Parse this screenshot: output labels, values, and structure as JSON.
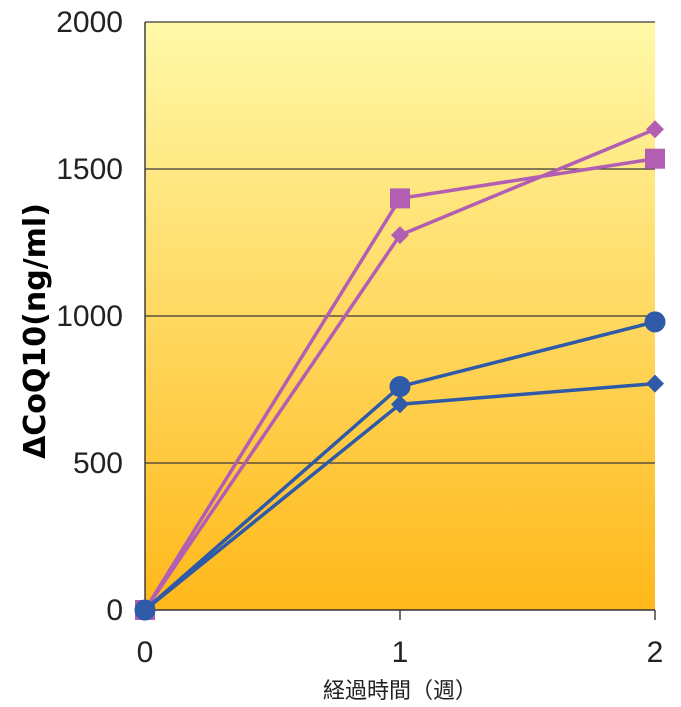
{
  "chart_data": {
    "type": "line",
    "xlabel": "経過時間（週）",
    "ylabel": "ΔCoQ10(ng/ml)",
    "x": [
      0,
      1,
      2
    ],
    "xlim": [
      0,
      2
    ],
    "ylim": [
      0,
      2000
    ],
    "x_ticks": [
      "0",
      "1",
      "2"
    ],
    "y_ticks": [
      "0",
      "500",
      "1000",
      "1500",
      "2000"
    ],
    "y_tick_values": [
      0,
      500,
      1000,
      1500,
      2000
    ],
    "grid": "horizontal",
    "legend": "none",
    "background_gradient": [
      "#fff9a8",
      "#ffb81a"
    ],
    "series": [
      {
        "marker": "square",
        "color": "#b25fb3",
        "values": [
          0,
          1400,
          1535
        ]
      },
      {
        "marker": "diamond",
        "color": "#b25fb3",
        "values": [
          0,
          1275,
          1635
        ]
      },
      {
        "marker": "circle",
        "color": "#2e5aa8",
        "values": [
          0,
          760,
          980
        ]
      },
      {
        "marker": "diamond",
        "color": "#2e5aa8",
        "values": [
          0,
          700,
          770
        ]
      }
    ]
  }
}
